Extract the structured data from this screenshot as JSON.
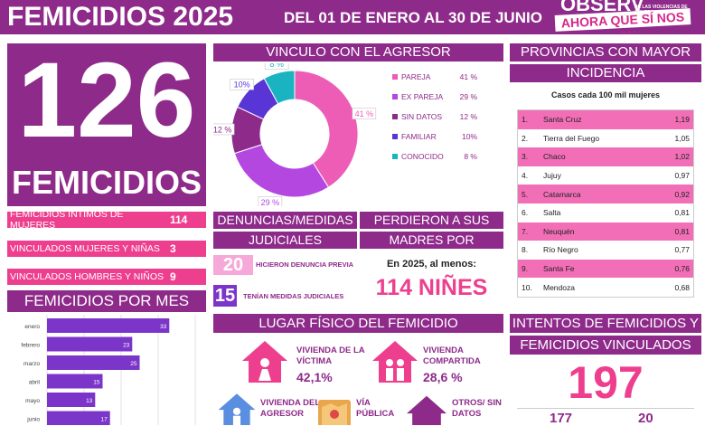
{
  "header": {
    "title": "FEMICIDIOS 2025",
    "dates": "DEL 01 DE ENERO AL 30 DE JUNIO",
    "logo_top": "OBSERV",
    "logo_small": "DE LAS VIOLENCIAS DE GÉNERO",
    "logo_bottom": "AHORA QUE SÍ NOS VEN"
  },
  "total": {
    "number": "126",
    "label": "FEMICIDIOS"
  },
  "categories": [
    {
      "label": "FEMICIDIOS ÍNTIMOS DE MUJERES",
      "value": "114"
    },
    {
      "label": "VINCULADOS MUJERES Y NIÑAS",
      "value": "3"
    },
    {
      "label": "VINCULADOS HOMBRES Y NIÑOS",
      "value": "9"
    }
  ],
  "por_mes": {
    "title": "FEMICIDIOS POR MES",
    "chart_data": {
      "type": "bar",
      "categories": [
        "enero",
        "febrero",
        "marzo",
        "abril",
        "mayo",
        "junio"
      ],
      "values": [
        33,
        23,
        25,
        15,
        13,
        17
      ],
      "xlim": [
        0,
        40
      ],
      "color": "#7b35c9"
    }
  },
  "vinculo": {
    "title": "VINCULO CON EL AGRESOR",
    "chart_data": {
      "type": "pie",
      "labels": [
        "PAREJA",
        "EX PAREJA",
        "SIN DATOS",
        "FAMILIAR",
        "CONOCIDO"
      ],
      "values": [
        41,
        29,
        12,
        10,
        8
      ],
      "value_labels": [
        "41 %",
        "29 %",
        "12 %",
        "10%",
        "8 %"
      ],
      "slice_labels": [
        "41 %",
        "29 %",
        "12 %",
        "10%",
        "8 %"
      ],
      "colors": [
        "#ee5db5",
        "#b347e0",
        "#8e2a8a",
        "#5a35d6",
        "#19b3c2"
      ]
    }
  },
  "denuncias": {
    "title1": "DENUNCIAS/MEDIDAS",
    "title2": "JUDICIALES",
    "items": [
      {
        "value": "20",
        "label": "HICIERON DENUNCIA PREVIA"
      },
      {
        "value": "15",
        "label": "TENÍAN MEDIDAS JUDICIALES"
      }
    ]
  },
  "madres": {
    "title1": "PERDIERON A SUS",
    "title2": "MADRES POR FEMICIDIO",
    "subtitle": "En 2025, al menos:",
    "value": "114 NIÑES"
  },
  "provincias": {
    "title1": "PROVINCIAS CON MAYOR",
    "title2": "INCIDENCIA",
    "subtitle": "Casos cada 100 mil mujeres",
    "rows": [
      {
        "n": "1.",
        "name": "Santa Cruz",
        "value": "1,19"
      },
      {
        "n": "2.",
        "name": "Tierra del Fuego",
        "value": "1,05"
      },
      {
        "n": "3.",
        "name": "Chaco",
        "value": "1,02"
      },
      {
        "n": "4.",
        "name": "Jujuy",
        "value": "0,97"
      },
      {
        "n": "5.",
        "name": "Catamarca",
        "value": "0,92"
      },
      {
        "n": "6.",
        "name": "Salta",
        "value": "0,81"
      },
      {
        "n": "7.",
        "name": "Neuquén",
        "value": "0,81"
      },
      {
        "n": "8.",
        "name": "Río Negro",
        "value": "0,77"
      },
      {
        "n": "9.",
        "name": "Santa Fe",
        "value": "0,76"
      },
      {
        "n": "10.",
        "name": "Mendoza",
        "value": "0,68"
      }
    ]
  },
  "lugar": {
    "title": "LUGAR FÍSICO DEL FEMICIDIO",
    "items": [
      {
        "l1": "VIVIENDA DE LA",
        "l2": "VÍCTIMA",
        "pct": "42,1%"
      },
      {
        "l1": "VIVIENDA",
        "l2": "COMPARTIDA",
        "pct": "28,6 %"
      },
      {
        "l1": "VIVIENDA DEL",
        "l2": "AGRESOR",
        "pct": ""
      },
      {
        "l1": "VÍA",
        "l2": "PÚBLICA",
        "pct": ""
      },
      {
        "l1": "OTROS/ SIN",
        "l2": "DATOS",
        "pct": ""
      }
    ]
  },
  "intentos": {
    "title1": "INTENTOS DE FEMICIDIOS Y",
    "title2": "FEMICIDIOS VINCULADOS",
    "value": "197",
    "sub1": "177",
    "sub2": "20"
  }
}
